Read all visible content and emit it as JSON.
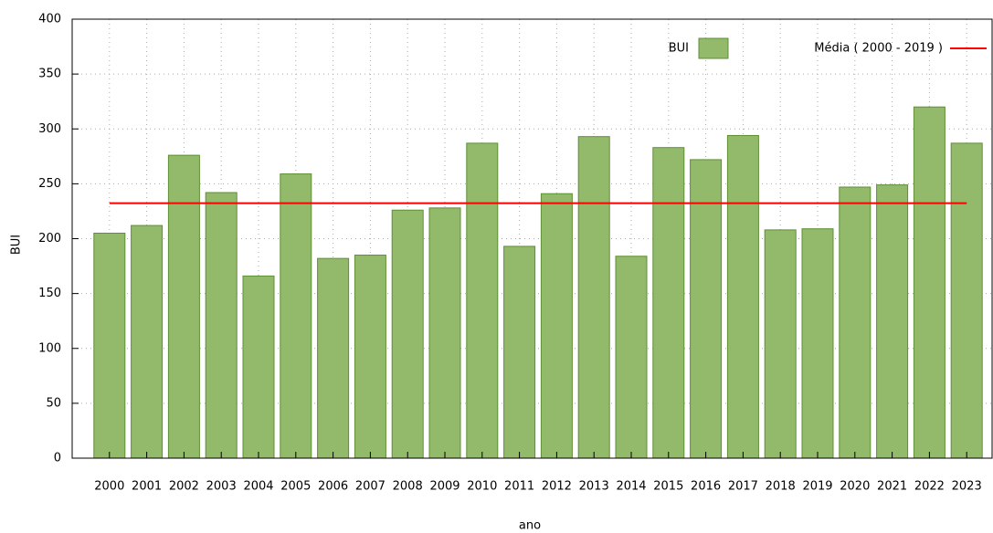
{
  "chart_data": {
    "type": "bar",
    "xlabel": "ano",
    "ylabel": "BUI",
    "categories": [
      "2000",
      "2001",
      "2002",
      "2003",
      "2004",
      "2005",
      "2006",
      "2007",
      "2008",
      "2009",
      "2010",
      "2011",
      "2012",
      "2013",
      "2014",
      "2015",
      "2016",
      "2017",
      "2018",
      "2019",
      "2020",
      "2021",
      "2022",
      "2023"
    ],
    "series": [
      {
        "name": "BUI",
        "color": "#93b96a",
        "edge_color": "#5f8f34",
        "values": [
          205,
          212,
          276,
          242,
          166,
          259,
          182,
          185,
          226,
          228,
          287,
          193,
          241,
          293,
          184,
          283,
          272,
          294,
          208,
          209,
          247,
          249,
          320,
          287
        ]
      }
    ],
    "reference_line": {
      "name": "Média ( 2000 - 2019 )",
      "value": 232.3,
      "color": "#ff0000"
    },
    "ylim": [
      0,
      400
    ],
    "yticks": [
      0,
      50,
      100,
      150,
      200,
      250,
      300,
      350,
      400
    ],
    "grid": true,
    "legend": "top-right"
  }
}
